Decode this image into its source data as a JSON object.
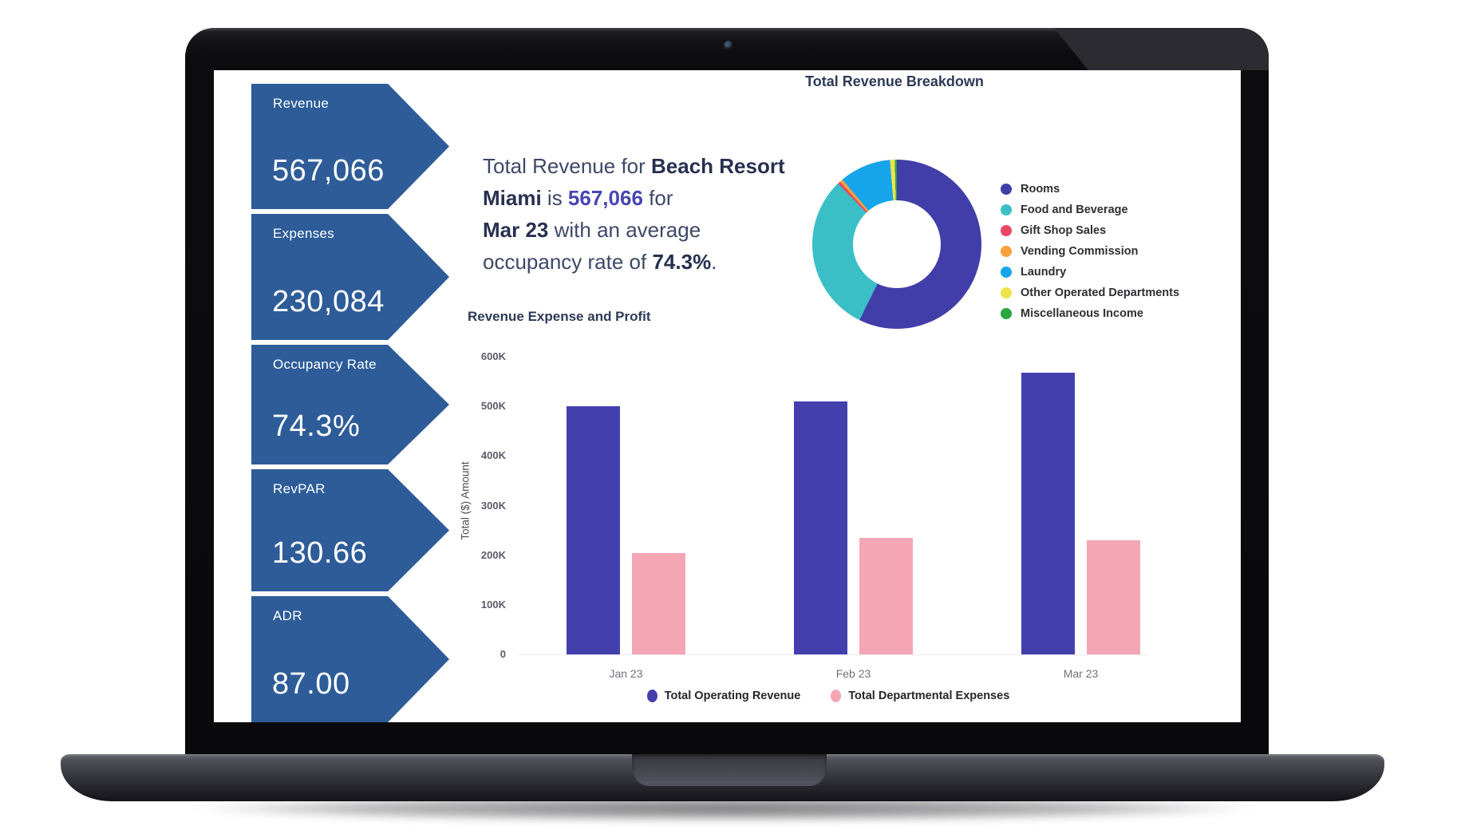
{
  "kpi_cards": [
    {
      "label": "Revenue",
      "value": "567,066"
    },
    {
      "label": "Expenses",
      "value": "230,084"
    },
    {
      "label": "Occupancy Rate",
      "value": "74.3%"
    },
    {
      "label": "RevPAR",
      "value": "130.66"
    },
    {
      "label": "ADR",
      "value": "87.00"
    }
  ],
  "kpi_card_color": "#2d5c98",
  "summary": {
    "segments": [
      {
        "t": "Total Revenue for ",
        "c": "n"
      },
      {
        "t": "Beach Resort Miami",
        "c": "b"
      },
      {
        "t": " is ",
        "c": "n"
      },
      {
        "t": "567,066",
        "c": "hl"
      },
      {
        "t": " for\n",
        "c": "n"
      },
      {
        "t": "Mar 23",
        "c": "b"
      },
      {
        "t": " with an average\noccupancy rate of ",
        "c": "n"
      },
      {
        "t": "74.3%",
        "c": "b"
      },
      {
        "t": ".",
        "c": "n"
      }
    ]
  },
  "chart_data": [
    {
      "type": "pie",
      "donut": true,
      "title": "Total Revenue Breakdown",
      "labels": [
        "Rooms",
        "Food and Beverage",
        "Gift Shop Sales",
        "Vending Commission",
        "Laundry",
        "Other Operated Departments",
        "Miscellaneous Income"
      ],
      "values": [
        57.0,
        30.3,
        0.5,
        0.6,
        9.8,
        0.9,
        0.4
      ],
      "units": "percent share (estimated from arc angles)",
      "colors": [
        "#413eaa",
        "#3bbfc6",
        "#e84762",
        "#f9a23d",
        "#16a5ea",
        "#efe24d",
        "#27a83f"
      ],
      "legend_position": "right"
    },
    {
      "type": "bar",
      "title": "Revenue Expense and Profit",
      "categories": [
        "Jan 23",
        "Feb 23",
        "Mar 23"
      ],
      "series": [
        {
          "name": "Total Operating Revenue",
          "color": "#4340ae",
          "values": [
            500000,
            510000,
            567066
          ]
        },
        {
          "name": "Total Departmental Expenses",
          "color": "#f4a6b4",
          "values": [
            205000,
            235000,
            230084
          ]
        }
      ],
      "xlabel": "",
      "ylabel": "Total ($) Amount",
      "ylim": [
        0,
        600000
      ],
      "yticks": [
        {
          "v": 600000,
          "label": "600K"
        },
        {
          "v": 500000,
          "label": "500K"
        },
        {
          "v": 400000,
          "label": "400K"
        },
        {
          "v": 300000,
          "label": "300K"
        },
        {
          "v": 200000,
          "label": "200K"
        },
        {
          "v": 100000,
          "label": "100K"
        },
        {
          "v": 0,
          "label": "0"
        }
      ],
      "grid": false,
      "legend_position": "bottom"
    }
  ]
}
